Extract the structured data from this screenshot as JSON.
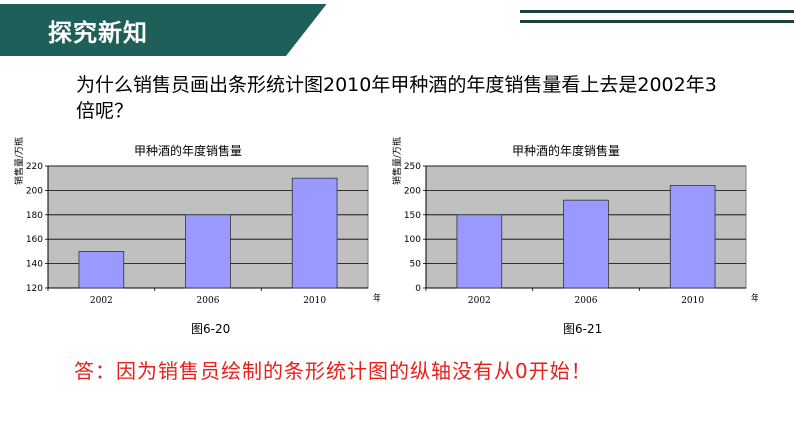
{
  "header": {
    "title": "探究新知"
  },
  "question": "为什么销售员画出条形统计图2010年甲种酒的年度销售量看上去是2002年3倍呢？",
  "chart_data": [
    {
      "type": "bar",
      "title": "甲种酒的年度销售量",
      "ylabel": "销售量/万瓶",
      "xlabel": "年份",
      "categories": [
        "2002",
        "2006",
        "2010"
      ],
      "values": [
        150,
        180,
        210
      ],
      "ylim": [
        120,
        220
      ],
      "yticks": [
        120,
        140,
        160,
        180,
        200,
        220
      ],
      "grid": true,
      "caption": "图6-20",
      "bar_color": "#9999ff",
      "plot_bg": "#c0c0c0"
    },
    {
      "type": "bar",
      "title": "甲种酒的年度销售量",
      "ylabel": "销售量/万瓶",
      "xlabel": "年份",
      "categories": [
        "2002",
        "2006",
        "2010"
      ],
      "values": [
        150,
        180,
        210
      ],
      "ylim": [
        0,
        250
      ],
      "yticks": [
        0,
        50,
        100,
        150,
        200,
        250
      ],
      "grid": true,
      "caption": "图6-21",
      "bar_color": "#9999ff",
      "plot_bg": "#c0c0c0"
    }
  ],
  "answer": "答：因为销售员绘制的条形统计图的纵轴没有从0开始！",
  "colors": {
    "header_dark": "#1f5f5a",
    "header_mid": "#3c7a74",
    "answer": "#e8201c"
  }
}
